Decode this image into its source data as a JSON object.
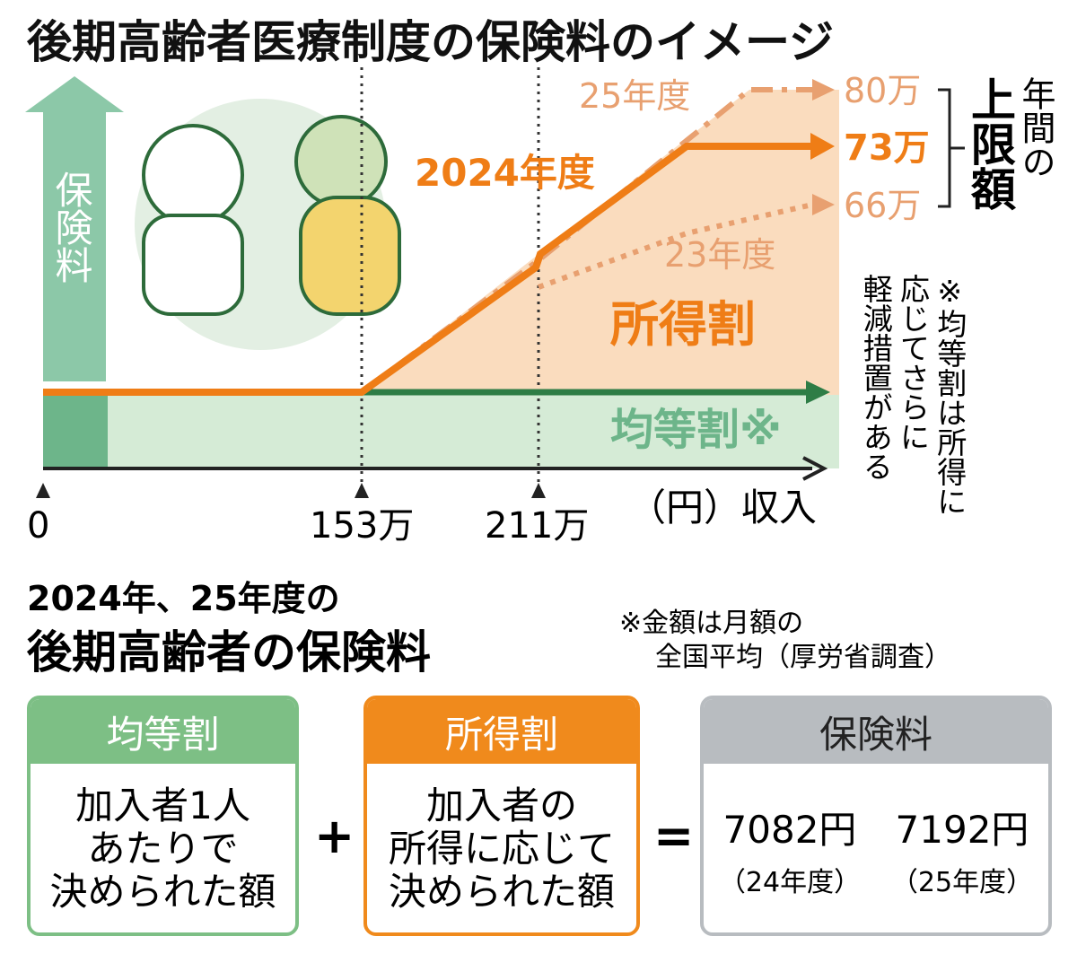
{
  "title": "後期高齢者医療制度の保険料のイメージ",
  "diagram": {
    "y_axis_label": "保険料",
    "x_axis_label": "（円）収入",
    "x_markers": [
      "0",
      "153万",
      "211万"
    ],
    "line_labels": {
      "fy2025": "25年度",
      "fy2024": "2024年度",
      "fy2023": "23年度"
    },
    "caps": {
      "fy2025": "80万",
      "fy2024": "73万",
      "fy2023": "66万"
    },
    "cap_label": [
      "年間の",
      "上限額"
    ],
    "income_share": "所得割",
    "flat_share": "均等割※",
    "note": [
      "※均等割は所得に",
      "応じてさらに",
      "軽減措置がある"
    ]
  },
  "section": {
    "subtitle": "2024年、25年度の",
    "title": "後期高齢者の保険料",
    "note": [
      "※金額は月額の",
      "全国平均（厚労省調査）"
    ]
  },
  "boxes": [
    {
      "header": "均等割",
      "body": [
        "加入者1人",
        "あたりで",
        "決められた額"
      ]
    },
    {
      "header": "所得割",
      "body": [
        "加入者の",
        "所得に応じて",
        "決められた額"
      ]
    },
    {
      "header": "保険料",
      "amounts": [
        {
          "amount": "7082円",
          "year": "（24年度）"
        },
        {
          "amount": "7192円",
          "year": "（25年度）"
        }
      ]
    }
  ],
  "operators": [
    "+",
    "="
  ]
}
